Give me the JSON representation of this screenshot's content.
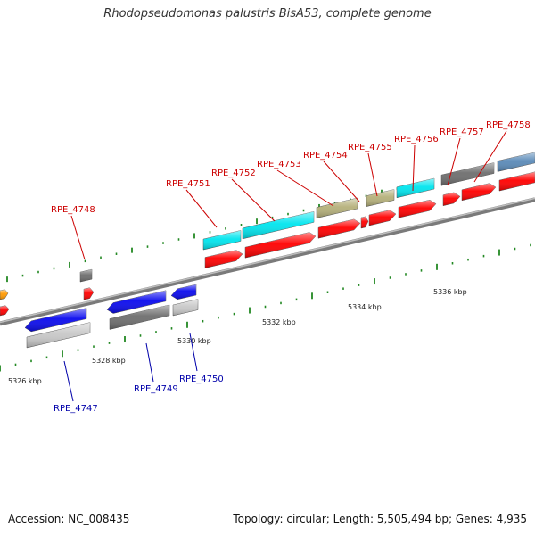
{
  "title": "Rhodopseudomonas palustris BisA53, complete genome",
  "footer": {
    "accession": "Accession: NC_008435",
    "topology": "Topology: circular; Length: 5,505,494 bp; Genes: 4,935"
  },
  "colors": {
    "backbone": "#808080",
    "forward_label": "#cc0000",
    "reverse_label": "#0000aa",
    "tick": "#228822",
    "red": "#ff0000",
    "cyan": "#00e5ee",
    "olive": "#b5b07a",
    "gray": "#6e6e6e",
    "steel": "#5a8ab8",
    "blue": "#0a0aee",
    "lightgray": "#c8c8c8",
    "orange": "#ff9900"
  },
  "kbp_labels": [
    "5326 kbp",
    "5328 kbp",
    "5330 kbp",
    "5332 kbp",
    "5334 kbp",
    "5336 kbp"
  ],
  "forward_genes": [
    "RPE_4748",
    "RPE_4751",
    "RPE_4752",
    "RPE_4753",
    "RPE_4754",
    "RPE_4755",
    "RPE_4756",
    "RPE_4757",
    "RPE_4758"
  ],
  "reverse_genes": [
    "RPE_4747",
    "RPE_4749",
    "RPE_4750"
  ]
}
